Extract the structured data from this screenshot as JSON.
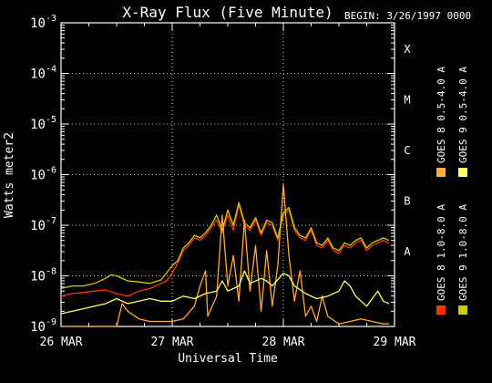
{
  "chart_data": {
    "type": "line",
    "title": "X-Ray Flux (Five Minute)",
    "begin_label": "BEGIN: 3/26/1997 0000",
    "xlabel": "Universal Time",
    "ylabel": "Watts meter2",
    "x_tick_labels": [
      "26 MAR",
      "27 MAR",
      "28 MAR",
      "29 MAR"
    ],
    "xlim_days": [
      0,
      3
    ],
    "ylim_exponent": [
      -9,
      -3
    ],
    "y_scale": "log",
    "y_tick_labels": [
      {
        "base": "10",
        "exp": "-9"
      },
      {
        "base": "10",
        "exp": "-8"
      },
      {
        "base": "10",
        "exp": "-7"
      },
      {
        "base": "10",
        "exp": "-6"
      },
      {
        "base": "10",
        "exp": "-5"
      },
      {
        "base": "10",
        "exp": "-4"
      },
      {
        "base": "10",
        "exp": "-3"
      }
    ],
    "flare_classes": [
      {
        "label": "A",
        "exp": -8
      },
      {
        "label": "B",
        "exp": -7
      },
      {
        "label": "C",
        "exp": -6
      },
      {
        "label": "M",
        "exp": -5
      },
      {
        "label": "X",
        "exp": -4
      }
    ],
    "grid": "dotted white at each flare class level and each day boundary",
    "legend_position": "right, rotated vertical",
    "series": [
      {
        "name": "GOES 8 1.0-8.0 A",
        "color": "#ff3300",
        "points": [
          [
            0.0,
            -8.4
          ],
          [
            0.1,
            -8.35
          ],
          [
            0.2,
            -8.33
          ],
          [
            0.3,
            -8.3
          ],
          [
            0.4,
            -8.28
          ],
          [
            0.5,
            -8.35
          ],
          [
            0.6,
            -8.4
          ],
          [
            0.7,
            -8.3
          ],
          [
            0.8,
            -8.25
          ],
          [
            0.9,
            -8.15
          ],
          [
            0.95,
            -8.1
          ],
          [
            1.0,
            -7.95
          ],
          [
            1.05,
            -7.75
          ],
          [
            1.1,
            -7.5
          ],
          [
            1.15,
            -7.4
          ],
          [
            1.2,
            -7.25
          ],
          [
            1.25,
            -7.3
          ],
          [
            1.3,
            -7.2
          ],
          [
            1.35,
            -7.05
          ],
          [
            1.4,
            -6.9
          ],
          [
            1.45,
            -7.15
          ],
          [
            1.5,
            -6.8
          ],
          [
            1.55,
            -7.1
          ],
          [
            1.6,
            -6.6
          ],
          [
            1.65,
            -7.0
          ],
          [
            1.7,
            -7.1
          ],
          [
            1.75,
            -6.9
          ],
          [
            1.8,
            -7.2
          ],
          [
            1.85,
            -6.95
          ],
          [
            1.9,
            -7.0
          ],
          [
            1.95,
            -7.3
          ],
          [
            2.0,
            -6.8
          ],
          [
            2.05,
            -6.7
          ],
          [
            2.1,
            -7.1
          ],
          [
            2.15,
            -7.25
          ],
          [
            2.2,
            -7.3
          ],
          [
            2.25,
            -7.1
          ],
          [
            2.3,
            -7.4
          ],
          [
            2.35,
            -7.45
          ],
          [
            2.4,
            -7.3
          ],
          [
            2.45,
            -7.5
          ],
          [
            2.5,
            -7.55
          ],
          [
            2.55,
            -7.4
          ],
          [
            2.6,
            -7.45
          ],
          [
            2.65,
            -7.35
          ],
          [
            2.7,
            -7.3
          ],
          [
            2.75,
            -7.5
          ],
          [
            2.8,
            -7.4
          ],
          [
            2.85,
            -7.35
          ],
          [
            2.9,
            -7.3
          ],
          [
            2.95,
            -7.35
          ]
        ]
      },
      {
        "name": "GOES 9 1.0-8.0 A",
        "color": "#cccc00",
        "points": [
          [
            0.0,
            -8.25
          ],
          [
            0.1,
            -8.2
          ],
          [
            0.2,
            -8.2
          ],
          [
            0.3,
            -8.15
          ],
          [
            0.4,
            -8.05
          ],
          [
            0.45,
            -7.98
          ],
          [
            0.5,
            -8.0
          ],
          [
            0.6,
            -8.1
          ],
          [
            0.7,
            -8.12
          ],
          [
            0.8,
            -8.15
          ],
          [
            0.9,
            -8.08
          ],
          [
            1.0,
            -7.8
          ],
          [
            1.05,
            -7.7
          ],
          [
            1.1,
            -7.45
          ],
          [
            1.15,
            -7.35
          ],
          [
            1.2,
            -7.2
          ],
          [
            1.25,
            -7.25
          ],
          [
            1.3,
            -7.15
          ],
          [
            1.35,
            -7.0
          ],
          [
            1.4,
            -6.8
          ],
          [
            1.45,
            -7.1
          ],
          [
            1.5,
            -6.7
          ],
          [
            1.55,
            -7.0
          ],
          [
            1.6,
            -6.55
          ],
          [
            1.65,
            -6.95
          ],
          [
            1.7,
            -7.05
          ],
          [
            1.75,
            -6.85
          ],
          [
            1.8,
            -7.15
          ],
          [
            1.85,
            -6.9
          ],
          [
            1.9,
            -6.95
          ],
          [
            1.95,
            -7.25
          ],
          [
            2.0,
            -6.75
          ],
          [
            2.05,
            -6.65
          ],
          [
            2.1,
            -7.05
          ],
          [
            2.15,
            -7.2
          ],
          [
            2.2,
            -7.25
          ],
          [
            2.25,
            -7.05
          ],
          [
            2.3,
            -7.35
          ],
          [
            2.35,
            -7.4
          ],
          [
            2.4,
            -7.25
          ],
          [
            2.45,
            -7.45
          ],
          [
            2.5,
            -7.5
          ],
          [
            2.55,
            -7.35
          ],
          [
            2.6,
            -7.4
          ],
          [
            2.65,
            -7.3
          ],
          [
            2.7,
            -7.25
          ],
          [
            2.75,
            -7.45
          ],
          [
            2.8,
            -7.35
          ],
          [
            2.85,
            -7.3
          ],
          [
            2.9,
            -7.25
          ],
          [
            2.95,
            -7.3
          ]
        ]
      },
      {
        "name": "GOES 8 0.5-4.0 A",
        "color": "#ffaa33",
        "points": [
          [
            0.0,
            -9.0
          ],
          [
            0.2,
            -9.0
          ],
          [
            0.4,
            -9.0
          ],
          [
            0.5,
            -9.0
          ],
          [
            0.55,
            -8.55
          ],
          [
            0.6,
            -8.7
          ],
          [
            0.7,
            -8.85
          ],
          [
            0.8,
            -8.9
          ],
          [
            0.9,
            -8.9
          ],
          [
            1.0,
            -8.9
          ],
          [
            1.1,
            -8.85
          ],
          [
            1.2,
            -8.6
          ],
          [
            1.25,
            -8.2
          ],
          [
            1.3,
            -7.9
          ],
          [
            1.32,
            -8.8
          ],
          [
            1.4,
            -8.4
          ],
          [
            1.45,
            -6.8
          ],
          [
            1.5,
            -8.2
          ],
          [
            1.55,
            -7.6
          ],
          [
            1.6,
            -8.5
          ],
          [
            1.65,
            -6.9
          ],
          [
            1.7,
            -8.3
          ],
          [
            1.75,
            -7.4
          ],
          [
            1.8,
            -8.7
          ],
          [
            1.85,
            -7.5
          ],
          [
            1.9,
            -8.6
          ],
          [
            1.95,
            -7.8
          ],
          [
            2.0,
            -6.2
          ],
          [
            2.05,
            -7.6
          ],
          [
            2.1,
            -8.5
          ],
          [
            2.15,
            -7.9
          ],
          [
            2.2,
            -8.8
          ],
          [
            2.25,
            -8.6
          ],
          [
            2.3,
            -8.9
          ],
          [
            2.35,
            -8.4
          ],
          [
            2.4,
            -8.8
          ],
          [
            2.5,
            -8.95
          ],
          [
            2.6,
            -8.9
          ],
          [
            2.7,
            -8.85
          ],
          [
            2.8,
            -8.9
          ],
          [
            2.9,
            -8.95
          ],
          [
            2.95,
            -8.95
          ]
        ]
      },
      {
        "name": "GOES 9 0.5-4.0 A",
        "color": "#ffff66",
        "points": [
          [
            0.0,
            -8.75
          ],
          [
            0.1,
            -8.7
          ],
          [
            0.2,
            -8.65
          ],
          [
            0.3,
            -8.6
          ],
          [
            0.4,
            -8.55
          ],
          [
            0.5,
            -8.45
          ],
          [
            0.6,
            -8.55
          ],
          [
            0.7,
            -8.5
          ],
          [
            0.8,
            -8.45
          ],
          [
            0.9,
            -8.5
          ],
          [
            1.0,
            -8.5
          ],
          [
            1.1,
            -8.4
          ],
          [
            1.2,
            -8.45
          ],
          [
            1.3,
            -8.35
          ],
          [
            1.4,
            -8.3
          ],
          [
            1.45,
            -8.1
          ],
          [
            1.5,
            -8.3
          ],
          [
            1.6,
            -8.2
          ],
          [
            1.65,
            -7.9
          ],
          [
            1.7,
            -8.15
          ],
          [
            1.8,
            -8.05
          ],
          [
            1.85,
            -8.1
          ],
          [
            1.9,
            -8.2
          ],
          [
            2.0,
            -7.95
          ],
          [
            2.05,
            -8.0
          ],
          [
            2.1,
            -8.2
          ],
          [
            2.2,
            -8.35
          ],
          [
            2.3,
            -8.45
          ],
          [
            2.4,
            -8.4
          ],
          [
            2.5,
            -8.3
          ],
          [
            2.55,
            -8.1
          ],
          [
            2.6,
            -8.2
          ],
          [
            2.65,
            -8.4
          ],
          [
            2.7,
            -8.5
          ],
          [
            2.75,
            -8.6
          ],
          [
            2.8,
            -8.45
          ],
          [
            2.85,
            -8.3
          ],
          [
            2.9,
            -8.5
          ],
          [
            2.95,
            -8.55
          ]
        ]
      }
    ]
  }
}
